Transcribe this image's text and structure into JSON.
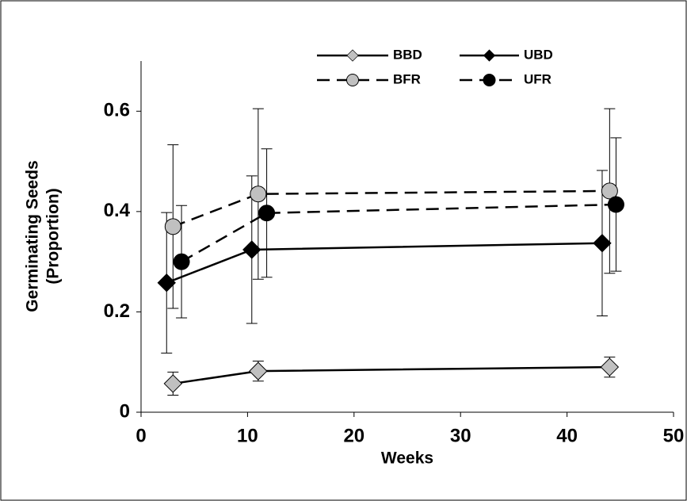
{
  "chart_data": {
    "type": "line",
    "xlabel": "Weeks",
    "ylabel": [
      "Germinating Seeds",
      "(Proportion)"
    ],
    "xlim": [
      0,
      50
    ],
    "xticks": [
      0,
      10,
      20,
      30,
      40,
      50
    ],
    "ylim": [
      0,
      0.7
    ],
    "yticks": [
      0,
      0.2,
      0.4,
      0.6
    ],
    "legend": "top",
    "series": [
      {
        "name": "BBD",
        "color": "#c0c0c0",
        "marker": "diamond",
        "dashed": false,
        "x": [
          3.0,
          11.0,
          44.0
        ],
        "values": [
          0.057,
          0.082,
          0.09
        ],
        "errors": [
          0.023,
          0.02,
          0.02
        ]
      },
      {
        "name": "UBD",
        "color": "#000000",
        "marker": "diamond",
        "dashed": false,
        "x": [
          2.4,
          10.4,
          43.3
        ],
        "values": [
          0.258,
          0.324,
          0.337
        ],
        "errors": [
          0.14,
          0.147,
          0.145
        ]
      },
      {
        "name": "BFR",
        "color": "#c0c0c0",
        "marker": "circle",
        "dashed": true,
        "x": [
          3.0,
          11.0,
          44.0
        ],
        "values": [
          0.37,
          0.435,
          0.441
        ],
        "errors": [
          0.163,
          0.17,
          0.164
        ]
      },
      {
        "name": "UFR",
        "color": "#000000",
        "marker": "circle",
        "dashed": true,
        "x": [
          3.8,
          11.8,
          44.6
        ],
        "values": [
          0.3,
          0.397,
          0.414
        ],
        "errors": [
          0.112,
          0.128,
          0.133
        ]
      }
    ]
  }
}
